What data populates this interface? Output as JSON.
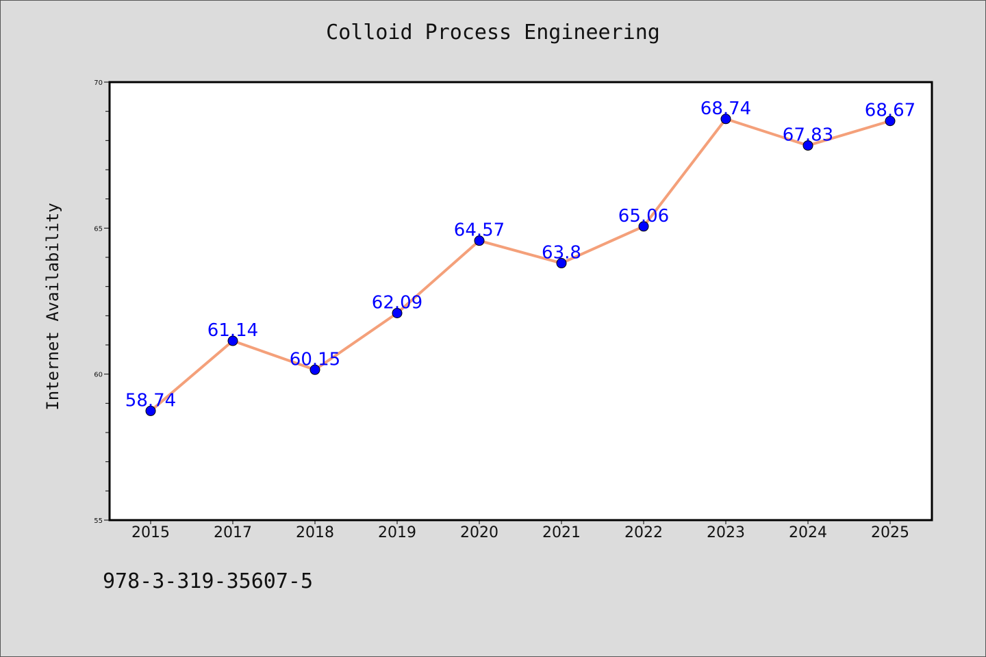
{
  "chart_data": {
    "type": "line",
    "title": "Colloid Process Engineering",
    "xlabel": "",
    "ylabel": "Internet Availability",
    "categories": [
      "2015",
      "2017",
      "2018",
      "2019",
      "2020",
      "2021",
      "2022",
      "2023",
      "2024",
      "2025"
    ],
    "series": [
      {
        "values": [
          58.74,
          61.14,
          60.15,
          62.09,
          64.57,
          63.8,
          65.06,
          68.74,
          67.83,
          68.67
        ],
        "labels": [
          "58.74",
          "61.14",
          "60.15",
          "62.09",
          "64.57",
          "63.8",
          "65.06",
          "68.74",
          "67.83",
          "68.67"
        ],
        "line_color": "#f4a07a",
        "marker_color": "#0000ff"
      }
    ],
    "ylim": [
      55,
      70
    ],
    "yticks": [
      "55",
      "60",
      "65",
      "70"
    ],
    "grid": false,
    "legend": "none"
  },
  "footer": {
    "isbn": "978-3-319-35607-5"
  }
}
